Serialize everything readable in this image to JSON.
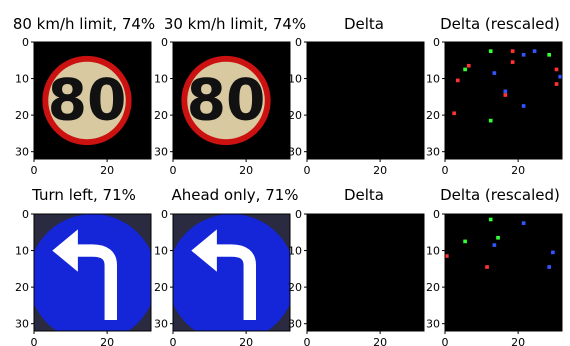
{
  "chart_data": [
    {
      "type": "heatmap",
      "title": "80 km/h limit, 74%",
      "content": "speed-sign-80",
      "xticks": [
        0,
        20
      ],
      "yticks": [
        0,
        10,
        20,
        30
      ],
      "xlim": [
        0,
        32
      ],
      "ylim": [
        0,
        32
      ]
    },
    {
      "type": "heatmap",
      "title": "30 km/h limit, 74%",
      "content": "speed-sign-80",
      "xticks": [
        0,
        20
      ],
      "yticks": [
        0,
        10,
        20,
        30
      ],
      "xlim": [
        0,
        32
      ],
      "ylim": [
        0,
        32
      ]
    },
    {
      "type": "heatmap",
      "title": "Delta",
      "content": "blank",
      "xticks": [
        0,
        20
      ],
      "yticks": [
        0,
        10,
        20,
        30
      ],
      "xlim": [
        0,
        32
      ],
      "ylim": [
        0,
        32
      ]
    },
    {
      "type": "heatmap",
      "title": "Delta (rescaled)",
      "content": "sparse",
      "xticks": [
        0,
        20
      ],
      "yticks": [
        0,
        10,
        20,
        30
      ],
      "xlim": [
        0,
        32
      ],
      "ylim": [
        0,
        32
      ],
      "pixels": [
        {
          "x": 12,
          "y": 2,
          "color": "#33ff33"
        },
        {
          "x": 18,
          "y": 2,
          "color": "#ff3333"
        },
        {
          "x": 21,
          "y": 3,
          "color": "#3355ff"
        },
        {
          "x": 24,
          "y": 2,
          "color": "#3355ff"
        },
        {
          "x": 28,
          "y": 3,
          "color": "#33ff33"
        },
        {
          "x": 5,
          "y": 7,
          "color": "#33ff33"
        },
        {
          "x": 6,
          "y": 6,
          "color": "#ff3333"
        },
        {
          "x": 13,
          "y": 8,
          "color": "#3355ff"
        },
        {
          "x": 3,
          "y": 10,
          "color": "#ff3333"
        },
        {
          "x": 30,
          "y": 7,
          "color": "#ff3333"
        },
        {
          "x": 31,
          "y": 9,
          "color": "#3355ff"
        },
        {
          "x": 30,
          "y": 11,
          "color": "#ff3333"
        },
        {
          "x": 16,
          "y": 13,
          "color": "#3355ff"
        },
        {
          "x": 16,
          "y": 14,
          "color": "#ff3333"
        },
        {
          "x": 21,
          "y": 17,
          "color": "#3355ff"
        },
        {
          "x": 2,
          "y": 19,
          "color": "#ff3333"
        },
        {
          "x": 12,
          "y": 21,
          "color": "#33ff33"
        },
        {
          "x": 18,
          "y": 5,
          "color": "#ff3333"
        }
      ]
    },
    {
      "type": "heatmap",
      "title": "Turn left, 71%",
      "content": "turn-sign",
      "xticks": [
        0,
        20
      ],
      "yticks": [
        0,
        10,
        20,
        30
      ],
      "xlim": [
        0,
        32
      ],
      "ylim": [
        0,
        32
      ]
    },
    {
      "type": "heatmap",
      "title": "Ahead only, 71%",
      "content": "turn-sign",
      "xticks": [
        0,
        20
      ],
      "yticks": [
        0,
        10,
        20,
        30
      ],
      "xlim": [
        0,
        32
      ],
      "ylim": [
        0,
        32
      ]
    },
    {
      "type": "heatmap",
      "title": "Delta",
      "content": "blank",
      "xticks": [
        0,
        20
      ],
      "yticks": [
        0,
        10,
        20,
        30
      ],
      "xlim": [
        0,
        32
      ],
      "ylim": [
        0,
        32
      ]
    },
    {
      "type": "heatmap",
      "title": "Delta (rescaled)",
      "content": "sparse",
      "xticks": [
        0,
        20
      ],
      "yticks": [
        0,
        10,
        20,
        30
      ],
      "xlim": [
        0,
        32
      ],
      "ylim": [
        0,
        32
      ],
      "pixels": [
        {
          "x": 12,
          "y": 1,
          "color": "#33ff33"
        },
        {
          "x": 21,
          "y": 2,
          "color": "#3355ff"
        },
        {
          "x": 14,
          "y": 6,
          "color": "#33ff33"
        },
        {
          "x": 5,
          "y": 7,
          "color": "#33ff33"
        },
        {
          "x": 13,
          "y": 8,
          "color": "#3355ff"
        },
        {
          "x": 29,
          "y": 10,
          "color": "#3355ff"
        },
        {
          "x": 0,
          "y": 11,
          "color": "#ff3333"
        },
        {
          "x": 11,
          "y": 14,
          "color": "#ff3333"
        },
        {
          "x": 28,
          "y": 14,
          "color": "#3355ff"
        }
      ]
    }
  ],
  "colors": {
    "sign_ring": "#cc1111",
    "sign_face": "#d8c9a0",
    "digits": "#111111",
    "blue_sign": "#1525d8",
    "arrow": "#ffffff",
    "background": "#000000"
  }
}
